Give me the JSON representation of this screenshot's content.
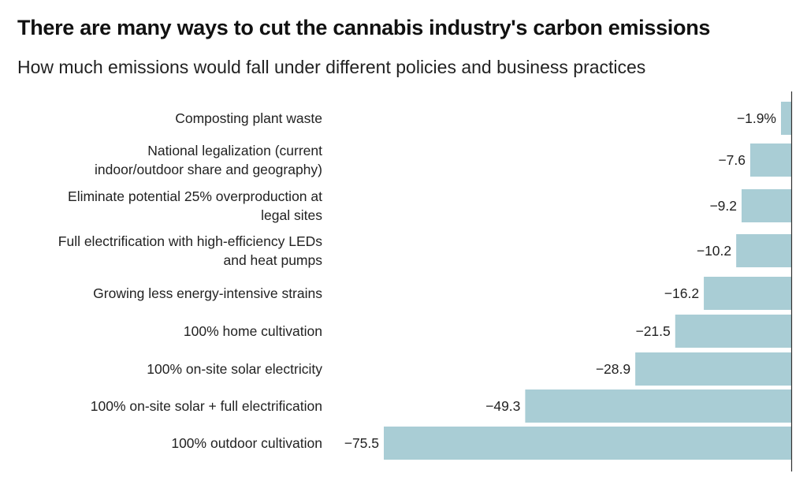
{
  "chart_data": {
    "type": "bar",
    "orientation": "horizontal",
    "title": "There are many ways to cut the cannabis industry's carbon emissions",
    "subtitle": "How much emissions would fall under different policies and business practices",
    "bar_color": "#a9cdd5",
    "axis_color": "#333333",
    "xlim": [
      -75.5,
      0
    ],
    "grid": false,
    "categories": [
      [
        "Composting plant waste"
      ],
      [
        "National legalization (current",
        "indoor/outdoor share and geography)"
      ],
      [
        "Eliminate potential 25% overproduction at",
        "legal sites"
      ],
      [
        "Full electrification with high-efficiency LEDs",
        "and heat pumps"
      ],
      [
        "Growing less energy-intensive strains"
      ],
      [
        "100% home cultivation"
      ],
      [
        "100% on-site solar electricity"
      ],
      [
        "100% on-site solar + full electrification"
      ],
      [
        "100% outdoor cultivation"
      ]
    ],
    "values": [
      -1.9,
      -7.6,
      -9.2,
      -10.2,
      -16.2,
      -21.5,
      -28.9,
      -49.3,
      -75.5
    ],
    "value_labels": [
      "−1.9%",
      "−7.6",
      "−9.2",
      "−10.2",
      "−16.2",
      "−21.5",
      "−28.9",
      "−49.3",
      "−75.5"
    ]
  }
}
